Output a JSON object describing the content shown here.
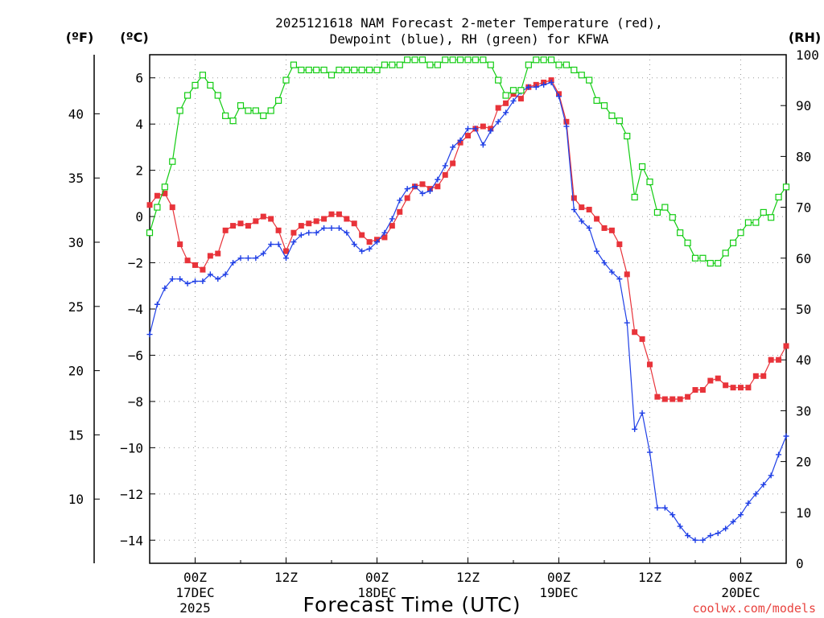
{
  "title_line1": "2025121618 NAM Forecast 2-meter Temperature (red),",
  "title_line2": "Dewpoint (blue), RH (green) for KFWA",
  "unit_f": "(ºF)",
  "unit_c": "(ºC)",
  "unit_rh": "(RH)",
  "x_axis_label": "Forecast Time (UTC)",
  "credit": "coolwx.com/models",
  "colors": {
    "temperature": "#e8333a",
    "dewpoint": "#1f3fe6",
    "rh": "#12cc12"
  },
  "chart_data": {
    "type": "line",
    "title": "2025121618 NAM Forecast 2-meter Temperature (red), Dewpoint (blue), RH (green) for KFWA",
    "xlabel": "Forecast Time (UTC)",
    "x_unit": "forecast hour",
    "xlim": [
      0,
      84
    ],
    "x_ticks": [
      {
        "hour": 6,
        "label": "00Z",
        "sub1": "17DEC",
        "sub2": "2025"
      },
      {
        "hour": 18,
        "label": "12Z",
        "sub1": "",
        "sub2": ""
      },
      {
        "hour": 30,
        "label": "00Z",
        "sub1": "18DEC",
        "sub2": ""
      },
      {
        "hour": 42,
        "label": "12Z",
        "sub1": "",
        "sub2": ""
      },
      {
        "hour": 54,
        "label": "00Z",
        "sub1": "19DEC",
        "sub2": ""
      },
      {
        "hour": 66,
        "label": "12Z",
        "sub1": "",
        "sub2": ""
      },
      {
        "hour": 78,
        "label": "00Z",
        "sub1": "20DEC",
        "sub2": ""
      }
    ],
    "ylim_c": [
      -15,
      7
    ],
    "yticks_c": [
      "6",
      "4",
      "2",
      "0",
      "−2",
      "−4",
      "−6",
      "−8",
      "−10",
      "−12",
      "−14"
    ],
    "yticks_c_values": [
      6,
      4,
      2,
      0,
      -2,
      -4,
      -6,
      -8,
      -10,
      -12,
      -14
    ],
    "yticks_f": [
      "40",
      "35",
      "30",
      "25",
      "20",
      "15",
      "10"
    ],
    "yticks_f_values": [
      40,
      35,
      30,
      25,
      20,
      15,
      10
    ],
    "ylim_rh": [
      0,
      100
    ],
    "yticks_rh": [
      "100",
      "90",
      "80",
      "70",
      "60",
      "50",
      "40",
      "30",
      "20",
      "10",
      "0"
    ],
    "yticks_rh_values": [
      100,
      90,
      80,
      70,
      60,
      50,
      40,
      30,
      20,
      10,
      0
    ],
    "series": [
      {
        "name": "Temperature",
        "unit": "C",
        "marker": "filled-square",
        "values": [
          [
            0,
            0.5
          ],
          [
            1,
            0.9
          ],
          [
            2,
            1.0
          ],
          [
            3,
            0.4
          ],
          [
            4,
            -1.2
          ],
          [
            5,
            -1.9
          ],
          [
            6,
            -2.1
          ],
          [
            7,
            -2.3
          ],
          [
            8,
            -1.7
          ],
          [
            9,
            -1.6
          ],
          [
            10,
            -0.6
          ],
          [
            11,
            -0.4
          ],
          [
            12,
            -0.3
          ],
          [
            13,
            -0.4
          ],
          [
            14,
            -0.2
          ],
          [
            15,
            0.0
          ],
          [
            16,
            -0.1
          ],
          [
            17,
            -0.6
          ],
          [
            18,
            -1.5
          ],
          [
            19,
            -0.7
          ],
          [
            20,
            -0.4
          ],
          [
            21,
            -0.3
          ],
          [
            22,
            -0.2
          ],
          [
            23,
            -0.1
          ],
          [
            24,
            0.1
          ],
          [
            25,
            0.1
          ],
          [
            26,
            -0.1
          ],
          [
            27,
            -0.3
          ],
          [
            28,
            -0.8
          ],
          [
            29,
            -1.1
          ],
          [
            30,
            -1.0
          ],
          [
            31,
            -0.9
          ],
          [
            32,
            -0.4
          ],
          [
            33,
            0.2
          ],
          [
            34,
            0.8
          ],
          [
            35,
            1.3
          ],
          [
            36,
            1.4
          ],
          [
            37,
            1.2
          ],
          [
            38,
            1.3
          ],
          [
            39,
            1.8
          ],
          [
            40,
            2.3
          ],
          [
            41,
            3.2
          ],
          [
            42,
            3.5
          ],
          [
            43,
            3.8
          ],
          [
            44,
            3.9
          ],
          [
            45,
            3.8
          ],
          [
            46,
            4.7
          ],
          [
            47,
            4.9
          ],
          [
            48,
            5.3
          ],
          [
            49,
            5.1
          ],
          [
            50,
            5.6
          ],
          [
            51,
            5.7
          ],
          [
            52,
            5.8
          ],
          [
            53,
            5.9
          ],
          [
            54,
            5.3
          ],
          [
            55,
            4.1
          ],
          [
            56,
            0.8
          ],
          [
            57,
            0.4
          ],
          [
            58,
            0.3
          ],
          [
            59,
            -0.1
          ],
          [
            60,
            -0.5
          ],
          [
            61,
            -0.6
          ],
          [
            62,
            -1.2
          ],
          [
            63,
            -2.5
          ],
          [
            64,
            -5.0
          ],
          [
            65,
            -5.3
          ],
          [
            66,
            -6.4
          ],
          [
            67,
            -7.8
          ],
          [
            68,
            -7.9
          ],
          [
            69,
            -7.9
          ],
          [
            70,
            -7.9
          ],
          [
            71,
            -7.8
          ],
          [
            72,
            -7.5
          ],
          [
            73,
            -7.5
          ],
          [
            74,
            -7.1
          ],
          [
            75,
            -7.0
          ],
          [
            76,
            -7.3
          ],
          [
            77,
            -7.4
          ],
          [
            78,
            -7.4
          ],
          [
            79,
            -7.4
          ],
          [
            80,
            -6.9
          ],
          [
            81,
            -6.9
          ],
          [
            82,
            -6.2
          ],
          [
            83,
            -6.2
          ],
          [
            84,
            -5.6
          ]
        ]
      },
      {
        "name": "Dewpoint",
        "unit": "C",
        "marker": "plus",
        "values": [
          [
            0,
            -5.1
          ],
          [
            1,
            -3.8
          ],
          [
            2,
            -3.1
          ],
          [
            3,
            -2.7
          ],
          [
            4,
            -2.7
          ],
          [
            5,
            -2.9
          ],
          [
            6,
            -2.8
          ],
          [
            7,
            -2.8
          ],
          [
            8,
            -2.5
          ],
          [
            9,
            -2.7
          ],
          [
            10,
            -2.5
          ],
          [
            11,
            -2.0
          ],
          [
            12,
            -1.8
          ],
          [
            13,
            -1.8
          ],
          [
            14,
            -1.8
          ],
          [
            15,
            -1.6
          ],
          [
            16,
            -1.2
          ],
          [
            17,
            -1.2
          ],
          [
            18,
            -1.8
          ],
          [
            19,
            -1.1
          ],
          [
            20,
            -0.8
          ],
          [
            21,
            -0.7
          ],
          [
            22,
            -0.7
          ],
          [
            23,
            -0.5
          ],
          [
            24,
            -0.5
          ],
          [
            25,
            -0.5
          ],
          [
            26,
            -0.7
          ],
          [
            27,
            -1.2
          ],
          [
            28,
            -1.5
          ],
          [
            29,
            -1.4
          ],
          [
            30,
            -1.1
          ],
          [
            31,
            -0.7
          ],
          [
            32,
            -0.1
          ],
          [
            33,
            0.7
          ],
          [
            34,
            1.2
          ],
          [
            35,
            1.3
          ],
          [
            36,
            1.0
          ],
          [
            37,
            1.1
          ],
          [
            38,
            1.6
          ],
          [
            39,
            2.2
          ],
          [
            40,
            3.0
          ],
          [
            41,
            3.3
          ],
          [
            42,
            3.8
          ],
          [
            43,
            3.8
          ],
          [
            44,
            3.1
          ],
          [
            45,
            3.7
          ],
          [
            46,
            4.1
          ],
          [
            47,
            4.5
          ],
          [
            48,
            5.0
          ],
          [
            49,
            5.4
          ],
          [
            50,
            5.6
          ],
          [
            51,
            5.6
          ],
          [
            52,
            5.7
          ],
          [
            53,
            5.8
          ],
          [
            54,
            5.2
          ],
          [
            55,
            3.9
          ],
          [
            56,
            0.3
          ],
          [
            57,
            -0.2
          ],
          [
            58,
            -0.5
          ],
          [
            59,
            -1.5
          ],
          [
            60,
            -2.0
          ],
          [
            61,
            -2.4
          ],
          [
            62,
            -2.7
          ],
          [
            63,
            -4.6
          ],
          [
            64,
            -9.2
          ],
          [
            65,
            -8.5
          ],
          [
            66,
            -10.2
          ],
          [
            67,
            -12.6
          ],
          [
            68,
            -12.6
          ],
          [
            69,
            -12.9
          ],
          [
            70,
            -13.4
          ],
          [
            71,
            -13.8
          ],
          [
            72,
            -14.0
          ],
          [
            73,
            -14.0
          ],
          [
            74,
            -13.8
          ],
          [
            75,
            -13.7
          ],
          [
            76,
            -13.5
          ],
          [
            77,
            -13.2
          ],
          [
            78,
            -12.9
          ],
          [
            79,
            -12.4
          ],
          [
            80,
            -12.0
          ],
          [
            81,
            -11.6
          ],
          [
            82,
            -11.2
          ],
          [
            83,
            -10.3
          ],
          [
            84,
            -9.5
          ]
        ]
      },
      {
        "name": "RH",
        "unit": "%",
        "marker": "open-square",
        "values": [
          [
            0,
            65
          ],
          [
            1,
            70
          ],
          [
            2,
            74
          ],
          [
            3,
            79
          ],
          [
            4,
            89
          ],
          [
            5,
            92
          ],
          [
            6,
            94
          ],
          [
            7,
            96
          ],
          [
            8,
            94
          ],
          [
            9,
            92
          ],
          [
            10,
            88
          ],
          [
            11,
            87
          ],
          [
            12,
            90
          ],
          [
            13,
            89
          ],
          [
            14,
            89
          ],
          [
            15,
            88
          ],
          [
            16,
            89
          ],
          [
            17,
            91
          ],
          [
            18,
            95
          ],
          [
            19,
            98
          ],
          [
            20,
            97
          ],
          [
            21,
            97
          ],
          [
            22,
            97
          ],
          [
            23,
            97
          ],
          [
            24,
            96
          ],
          [
            25,
            97
          ],
          [
            26,
            97
          ],
          [
            27,
            97
          ],
          [
            28,
            97
          ],
          [
            29,
            97
          ],
          [
            30,
            97
          ],
          [
            31,
            98
          ],
          [
            32,
            98
          ],
          [
            33,
            98
          ],
          [
            34,
            99
          ],
          [
            35,
            99
          ],
          [
            36,
            99
          ],
          [
            37,
            98
          ],
          [
            38,
            98
          ],
          [
            39,
            99
          ],
          [
            40,
            99
          ],
          [
            41,
            99
          ],
          [
            42,
            99
          ],
          [
            43,
            99
          ],
          [
            44,
            99
          ],
          [
            45,
            98
          ],
          [
            46,
            95
          ],
          [
            47,
            92
          ],
          [
            48,
            93
          ],
          [
            49,
            93
          ],
          [
            50,
            98
          ],
          [
            51,
            99
          ],
          [
            52,
            99
          ],
          [
            53,
            99
          ],
          [
            54,
            98
          ],
          [
            55,
            98
          ],
          [
            56,
            97
          ],
          [
            57,
            96
          ],
          [
            58,
            95
          ],
          [
            59,
            91
          ],
          [
            60,
            90
          ],
          [
            61,
            88
          ],
          [
            62,
            87
          ],
          [
            63,
            84
          ],
          [
            64,
            72
          ],
          [
            65,
            78
          ],
          [
            66,
            75
          ],
          [
            67,
            69
          ],
          [
            68,
            70
          ],
          [
            69,
            68
          ],
          [
            70,
            65
          ],
          [
            71,
            63
          ],
          [
            72,
            60
          ],
          [
            73,
            60
          ],
          [
            74,
            59
          ],
          [
            75,
            59
          ],
          [
            76,
            61
          ],
          [
            77,
            63
          ],
          [
            78,
            65
          ],
          [
            79,
            67
          ],
          [
            80,
            67
          ],
          [
            81,
            69
          ],
          [
            82,
            68
          ],
          [
            83,
            72
          ],
          [
            84,
            74
          ]
        ]
      }
    ]
  }
}
